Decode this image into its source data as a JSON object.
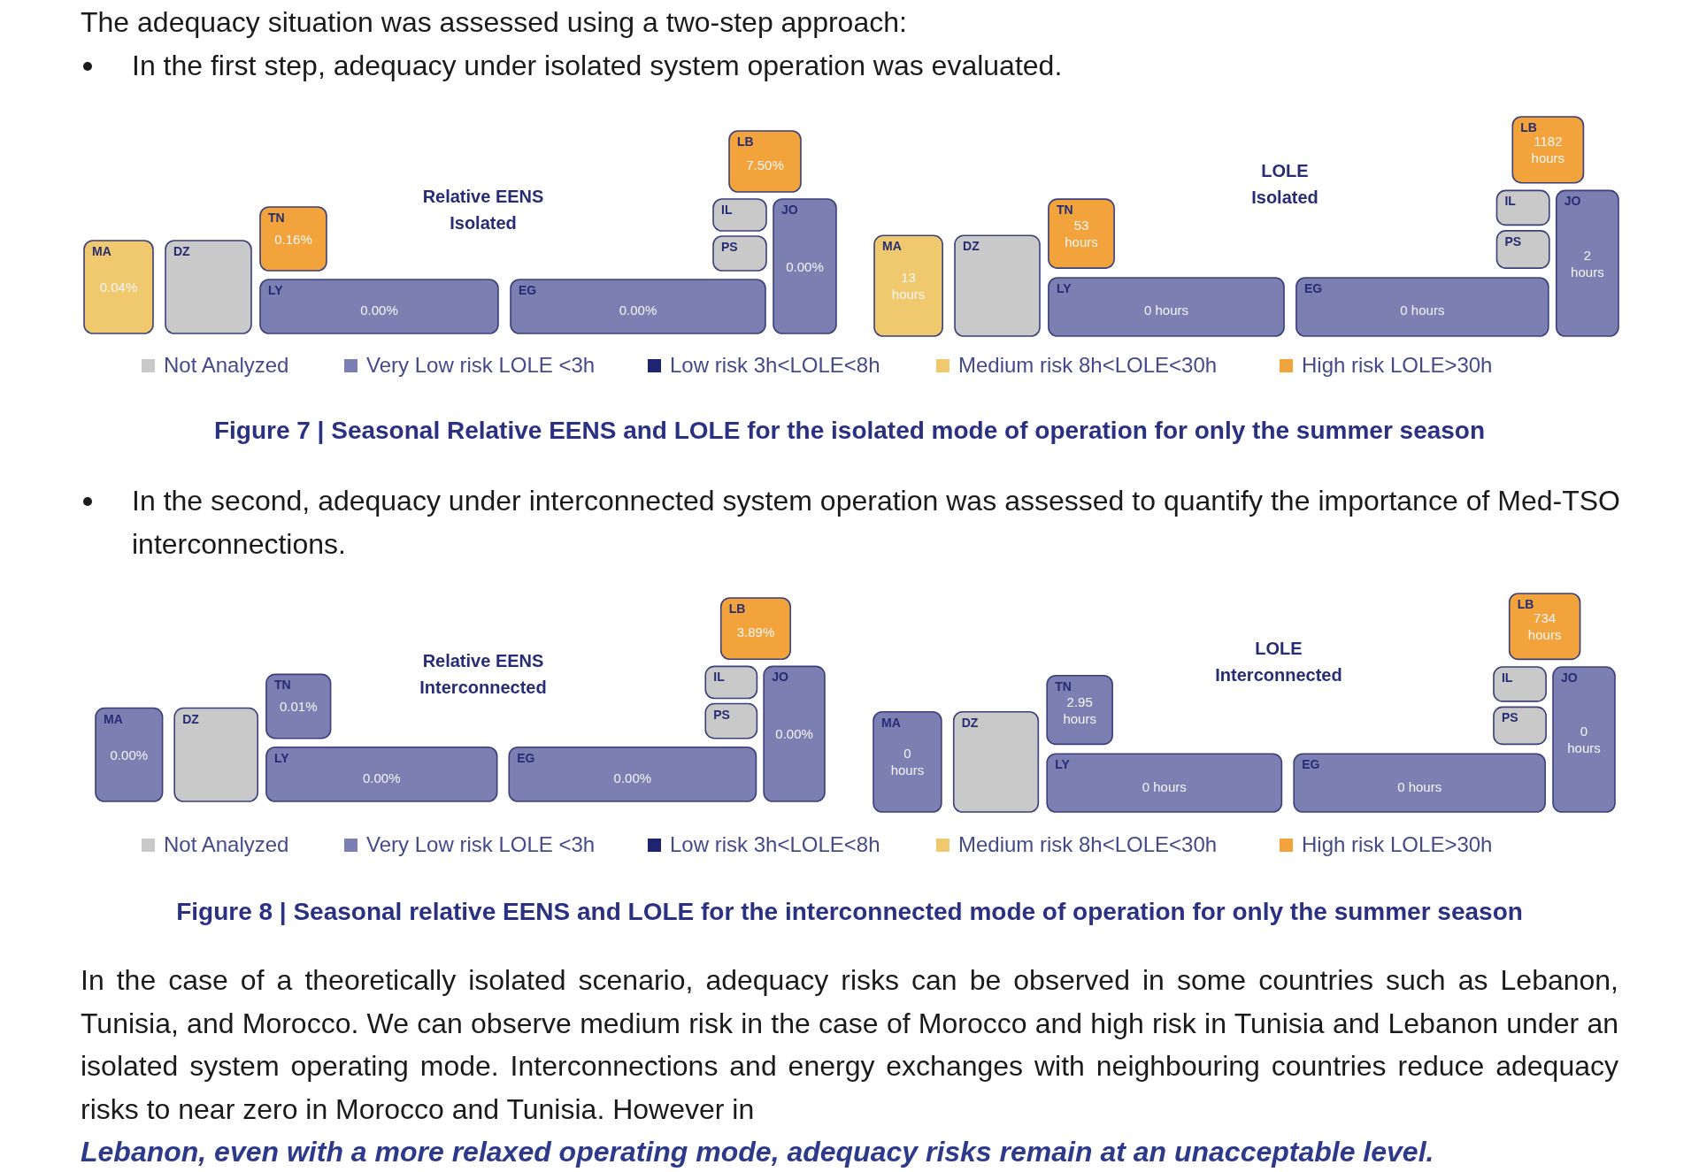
{
  "chart_data": [
    {
      "type": "other",
      "title": "Relative EENS\nIsolated",
      "categories": [
        "MA",
        "DZ",
        "TN",
        "LY",
        "EG",
        "IL",
        "PS",
        "LB",
        "JO"
      ],
      "values": [
        0.04,
        null,
        0.16,
        0,
        0,
        null,
        null,
        7.5,
        0
      ],
      "value_labels": [
        "0.04%",
        null,
        "0.16%",
        "0.00%",
        "0.00%",
        null,
        null,
        "7.50%",
        "0.00%"
      ],
      "colors": [
        "#f0c86e",
        "#c9c9c9",
        "#f2a33c",
        "#7b7fb1",
        "#7b7fb1",
        "#c9c9c9",
        "#c9c9c9",
        "#f2a33c",
        "#7b7fb1"
      ],
      "annotations": [
        "The adequacy situation was assessed using a two-step approach:",
        "In the first step, adequacy under isolated system operation was evaluated."
      ]
    },
    {
      "type": "other",
      "title": "LOLE\nIsolated",
      "categories": [
        "MA",
        "DZ",
        "TN",
        "LY",
        "EG",
        "IL",
        "PS",
        "LB",
        "JO"
      ],
      "colors": [
        "#f0c86e",
        "#c9c9c9",
        "#f2a33c",
        "#7b7fb1",
        "#7b7fb1",
        "#c9c9c9",
        "#c9c9c9",
        "#f2a33c",
        "#7b7fb1"
      ],
      "series": [
        {
          "name": "Not Analyzed",
          "color": "#c9c9c9",
          "values": [
            null,
            null,
            null,
            null,
            null,
            null,
            null,
            null,
            null
          ]
        },
        {
          "name": "Very Low risk LOLE <3h",
          "color": "#7b7fb1",
          "values": [
            null,
            null,
            null,
            0,
            0,
            null,
            null,
            null,
            2
          ],
          "value_labels": [
            null,
            null,
            null,
            "0 hours",
            "0 hours",
            null,
            null,
            null,
            "2 hours"
          ]
        },
        {
          "name": "Low risk 3h<LOLE<8h",
          "color": "#1e2470",
          "values": [
            null,
            null,
            null,
            null,
            null,
            null,
            null,
            null,
            null
          ]
        },
        {
          "name": "Medium risk 8h<LOLE<30h",
          "color": "#f0c86e",
          "values": [
            13,
            null,
            null,
            null,
            null,
            null,
            null,
            null,
            null
          ],
          "value_labels": [
            "13 hours",
            null,
            null,
            null,
            null,
            null,
            null,
            null,
            null
          ]
        },
        {
          "name": "High risk LOLE>30h",
          "color": "#f2a33c",
          "values": [
            null,
            null,
            53,
            null,
            null,
            null,
            null,
            1182,
            null
          ],
          "value_labels": [
            null,
            null,
            "53 hours",
            null,
            null,
            null,
            null,
            "1182 hours",
            null
          ]
        }
      ],
      "legend": "bottom",
      "annotations": [
        "Figure 7 | Seasonal Relative EENS and LOLE for the isolated mode of operation for only the summer season"
      ]
    },
    {
      "type": "other",
      "title": "Relative EENS\nInterconnected",
      "categories": [
        "MA",
        "DZ",
        "TN",
        "LY",
        "EG",
        "IL",
        "PS",
        "LB",
        "JO"
      ],
      "values": [
        0,
        null,
        0.01,
        0,
        0,
        null,
        null,
        3.89,
        0
      ],
      "value_labels": [
        "0.00%",
        null,
        "0.01%",
        "0.00%",
        "0.00%",
        null,
        null,
        "3.89%",
        "0.00%"
      ],
      "colors": [
        "#7b7fb1",
        "#c9c9c9",
        "#7b7fb1",
        "#7b7fb1",
        "#7b7fb1",
        "#c9c9c9",
        "#c9c9c9",
        "#f2a33c",
        "#7b7fb1"
      ],
      "annotations": [
        "In the second, adequacy under interconnected system operation was assessed to quantify the importance of Med-TSO interconnections."
      ]
    },
    {
      "type": "other",
      "title": "LOLE\nInterconnected",
      "categories": [
        "MA",
        "DZ",
        "TN",
        "LY",
        "EG",
        "IL",
        "PS",
        "LB",
        "JO"
      ],
      "colors": [
        "#7b7fb1",
        "#c9c9c9",
        "#7b7fb1",
        "#7b7fb1",
        "#7b7fb1",
        "#c9c9c9",
        "#c9c9c9",
        "#f2a33c",
        "#7b7fb1"
      ],
      "series": [
        {
          "name": "Not Analyzed",
          "color": "#c9c9c9",
          "values": [
            null,
            null,
            null,
            null,
            null,
            null,
            null,
            null,
            null
          ]
        },
        {
          "name": "Very Low risk LOLE <3h",
          "color": "#7b7fb1",
          "values": [
            0,
            null,
            2.95,
            0,
            0,
            null,
            null,
            null,
            0
          ],
          "value_labels": [
            "0 hours",
            null,
            "2.95 hours",
            "0 hours",
            "0 hours",
            null,
            null,
            null,
            "0 hours"
          ]
        },
        {
          "name": "Low risk 3h<LOLE<8h",
          "color": "#1e2470",
          "values": [
            null,
            null,
            null,
            null,
            null,
            null,
            null,
            null,
            null
          ]
        },
        {
          "name": "Medium risk 8h<LOLE<30h",
          "color": "#f0c86e",
          "values": [
            null,
            null,
            null,
            null,
            null,
            null,
            null,
            null,
            null
          ]
        },
        {
          "name": "High risk LOLE>30h",
          "color": "#f2a33c",
          "values": [
            null,
            null,
            null,
            null,
            null,
            null,
            null,
            734,
            null
          ],
          "value_labels": [
            null,
            null,
            null,
            null,
            null,
            null,
            null,
            "734 hours",
            null
          ]
        }
      ],
      "legend": "bottom",
      "annotations": [
        "Figure 8 | Seasonal relative EENS and LOLE for the interconnected mode of operation for only the summer season",
        "In the case of a theoretically isolated scenario, adequacy risks can be observed in some countries such as Lebanon, Tunisia, and Morocco. We can observe medium risk in the case of Morocco and high risk in Tunisia and Lebanon under an isolated system operating mode. Interconnections and energy exchanges with neighbouring countries reduce adequacy risks to near zero in Morocco and Tunisia. However in",
        "Lebanon, even with a more relaxed operating mode, adequacy risks remain at an unacceptable level."
      ]
    }
  ]
}
